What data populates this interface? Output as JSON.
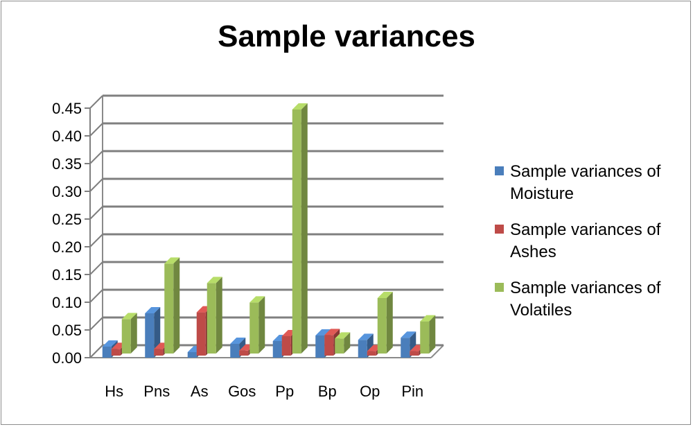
{
  "chart_data": {
    "type": "bar",
    "title": "Sample variances",
    "categories": [
      "Hs",
      "Pns",
      "As",
      "Gos",
      "Pp",
      "Bp",
      "Op",
      "Pin"
    ],
    "series": [
      {
        "name": "Sample variances of Moisture",
        "color": "#4a7ebb",
        "values": [
          0.02,
          0.08,
          0.01,
          0.025,
          0.03,
          0.04,
          0.032,
          0.036
        ]
      },
      {
        "name": "Sample variances of Ashes",
        "color": "#be4b48",
        "values": [
          0.012,
          0.012,
          0.078,
          0.009,
          0.035,
          0.037,
          0.008,
          0.008
        ]
      },
      {
        "name": "Sample variances of Volatiles",
        "color": "#9bbb59",
        "values": [
          0.062,
          0.162,
          0.127,
          0.092,
          0.44,
          0.027,
          0.1,
          0.058
        ]
      }
    ],
    "yticks": [
      "0.00",
      "0.05",
      "0.10",
      "0.15",
      "0.20",
      "0.25",
      "0.30",
      "0.35",
      "0.40",
      "0.45"
    ],
    "ylim": [
      0,
      0.45
    ],
    "grid": true,
    "legend_position": "right"
  }
}
